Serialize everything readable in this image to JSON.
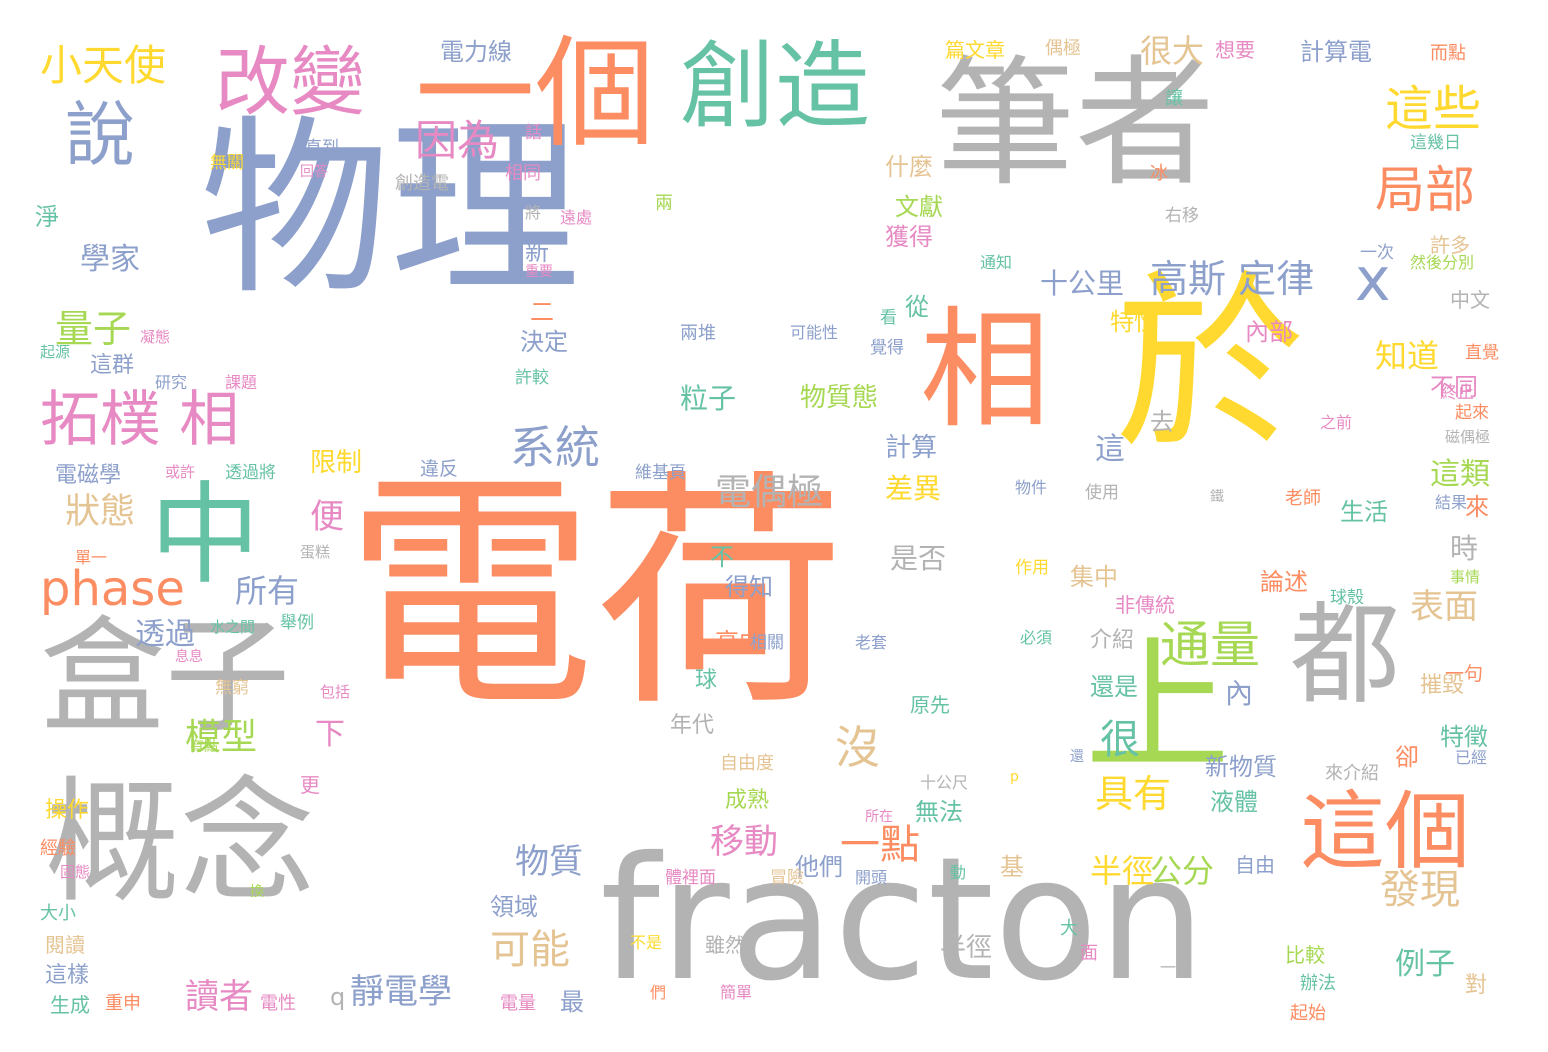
{
  "words": [
    {
      "text": "電荷",
      "color": "#FC8D62"
    },
    {
      "text": "物理",
      "color": "#8DA0CB"
    },
    {
      "text": "fracton",
      "color": "#B3B3B3"
    },
    {
      "text": "筆者",
      "color": "#B3B3B3"
    },
    {
      "text": "於",
      "color": "#FFD92F"
    },
    {
      "text": "概念",
      "color": "#B3B3B3"
    },
    {
      "text": "一個",
      "color": "#FC8D62"
    },
    {
      "text": "盒子",
      "color": "#B3B3B3"
    },
    {
      "text": "創造",
      "color": "#66C2A5"
    },
    {
      "text": "中",
      "color": "#66C2A5"
    },
    {
      "text": "相",
      "color": "#FC8D62"
    },
    {
      "text": "上",
      "color": "#A6D854"
    },
    {
      "text": "都",
      "color": "#B3B3B3"
    },
    {
      "text": "這個",
      "color": "#FC8D62"
    },
    {
      "text": "改變",
      "color": "#E78AC3"
    },
    {
      "text": "說",
      "color": "#8DA0CB"
    },
    {
      "text": "拓樸 相",
      "color": "#E78AC3"
    },
    {
      "text": "phase",
      "color": "#FC8D62"
    },
    {
      "text": "小天使",
      "color": "#FFD92F"
    },
    {
      "text": "因為",
      "color": "#E78AC3"
    },
    {
      "text": "x",
      "color": "#8DA0CB"
    },
    {
      "text": "這些",
      "color": "#FFD92F"
    },
    {
      "text": "局部",
      "color": "#FC8D62"
    },
    {
      "text": "高斯 定律",
      "color": "#8DA0CB"
    },
    {
      "text": "通量",
      "color": "#A6D854"
    },
    {
      "text": "系統",
      "color": "#8DA0CB"
    },
    {
      "text": "量子",
      "color": "#A6D854"
    },
    {
      "text": "狀態",
      "color": "#E5C494"
    },
    {
      "text": "學家",
      "color": "#8DA0CB"
    },
    {
      "text": "很大",
      "color": "#E5C494"
    },
    {
      "text": "很",
      "color": "#66C2A5"
    },
    {
      "text": "電偶極",
      "color": "#B3B3B3"
    },
    {
      "text": "模型",
      "color": "#A6D854"
    },
    {
      "text": "可能",
      "color": "#E5C494"
    },
    {
      "text": "沒",
      "color": "#E5C494"
    },
    {
      "text": "具有",
      "color": "#FFD92F"
    },
    {
      "text": "發現",
      "color": "#E5C494"
    },
    {
      "text": "一點",
      "color": "#FC8D62"
    },
    {
      "text": "移動",
      "color": "#E78AC3"
    },
    {
      "text": "物質",
      "color": "#8DA0CB"
    },
    {
      "text": "所有",
      "color": "#8DA0CB"
    },
    {
      "text": "讀者",
      "color": "#E78AC3"
    },
    {
      "text": "靜電學",
      "color": "#8DA0CB"
    },
    {
      "text": "半徑",
      "color": "#FFD92F"
    },
    {
      "text": "公分",
      "color": "#A6D854"
    },
    {
      "text": "知道",
      "color": "#FFD92F"
    },
    {
      "text": "這類",
      "color": "#A6D854"
    },
    {
      "text": "例子",
      "color": "#66C2A5"
    },
    {
      "text": "表面",
      "color": "#E5C494"
    },
    {
      "text": "十公里",
      "color": "#8DA0CB"
    },
    {
      "text": "粒子",
      "color": "#66C2A5"
    },
    {
      "text": "物質態",
      "color": "#A6D854"
    },
    {
      "text": "差異",
      "color": "#FFD92F"
    },
    {
      "text": "計算",
      "color": "#8DA0CB"
    },
    {
      "text": "從",
      "color": "#66C2A5"
    },
    {
      "text": "獲得",
      "color": "#E78AC3"
    },
    {
      "text": "文獻",
      "color": "#A6D854"
    },
    {
      "text": "什麼",
      "color": "#E5C494"
    },
    {
      "text": "電力線",
      "color": "#8DA0CB"
    },
    {
      "text": "計算電",
      "color": "#8DA0CB"
    },
    {
      "text": "篇文章",
      "color": "#FFD92F"
    },
    {
      "text": "偶極",
      "color": "#E5C494"
    },
    {
      "text": "想要",
      "color": "#E78AC3"
    },
    {
      "text": "而點",
      "color": "#FC8D62"
    },
    {
      "text": "讓",
      "color": "#66C2A5"
    },
    {
      "text": "這幾日",
      "color": "#66C2A5"
    },
    {
      "text": "冰",
      "color": "#FC8D62"
    },
    {
      "text": "右移",
      "color": "#B3B3B3"
    },
    {
      "text": "一次",
      "color": "#8DA0CB"
    },
    {
      "text": "許多",
      "color": "#E5C494"
    },
    {
      "text": "然後分別",
      "color": "#A6D854"
    },
    {
      "text": "中文",
      "color": "#B3B3B3"
    },
    {
      "text": "直覺",
      "color": "#FC8D62"
    },
    {
      "text": "終止",
      "color": "#E78AC3"
    },
    {
      "text": "起來",
      "color": "#FC8D62"
    },
    {
      "text": "磁偶極",
      "color": "#B3B3B3"
    },
    {
      "text": "之前",
      "color": "#E78AC3"
    },
    {
      "text": "不同",
      "color": "#E78AC3"
    },
    {
      "text": "來",
      "color": "#FC8D62"
    },
    {
      "text": "時",
      "color": "#B3B3B3"
    },
    {
      "text": "生活",
      "color": "#66C2A5"
    },
    {
      "text": "結果",
      "color": "#8DA0CB"
    },
    {
      "text": "老師",
      "color": "#FC8D62"
    },
    {
      "text": "事情",
      "color": "#A6D854"
    },
    {
      "text": "球殼",
      "color": "#66C2A5"
    },
    {
      "text": "一句",
      "color": "#FC8D62"
    },
    {
      "text": "摧毀",
      "color": "#E5C494"
    },
    {
      "text": "特徵",
      "color": "#66C2A5"
    },
    {
      "text": "卻",
      "color": "#FC8D62"
    },
    {
      "text": "已經",
      "color": "#8DA0CB"
    },
    {
      "text": "來介紹",
      "color": "#B3B3B3"
    },
    {
      "text": "辦法",
      "color": "#66C2A5"
    },
    {
      "text": "起始",
      "color": "#FC8D62"
    },
    {
      "text": "對",
      "color": "#E5C494"
    },
    {
      "text": "比較",
      "color": "#A6D854"
    },
    {
      "text": "一樣",
      "color": "#B3B3B3"
    },
    {
      "text": "自由",
      "color": "#8DA0CB"
    },
    {
      "text": "液體",
      "color": "#66C2A5"
    },
    {
      "text": "新物質",
      "color": "#8DA0CB"
    },
    {
      "text": "論述",
      "color": "#FC8D62"
    },
    {
      "text": "內",
      "color": "#8DA0CB"
    },
    {
      "text": "集中",
      "color": "#E5C494"
    },
    {
      "text": "介紹",
      "color": "#B3B3B3"
    },
    {
      "text": "還是",
      "color": "#66C2A5"
    },
    {
      "text": "非傳統",
      "color": "#E78AC3"
    },
    {
      "text": "內部",
      "color": "#E78AC3"
    },
    {
      "text": "特性",
      "color": "#FFD92F"
    },
    {
      "text": "這",
      "color": "#8DA0CB"
    },
    {
      "text": "去",
      "color": "#B3B3B3"
    },
    {
      "text": "使用",
      "color": "#B3B3B3"
    },
    {
      "text": "作用",
      "color": "#FFD92F"
    },
    {
      "text": "必須",
      "color": "#66C2A5"
    },
    {
      "text": "是否",
      "color": "#B3B3B3"
    },
    {
      "text": "不",
      "color": "#66C2A5"
    },
    {
      "text": "得知",
      "color": "#8DA0CB"
    },
    {
      "text": "高中",
      "color": "#FC8D62"
    },
    {
      "text": "球",
      "color": "#66C2A5"
    },
    {
      "text": "年代",
      "color": "#B3B3B3"
    },
    {
      "text": "下",
      "color": "#E78AC3"
    },
    {
      "text": "更",
      "color": "#E78AC3"
    },
    {
      "text": "便",
      "color": "#E78AC3"
    },
    {
      "text": "限制",
      "color": "#FFD92F"
    },
    {
      "text": "透過",
      "color": "#8DA0CB"
    },
    {
      "text": "電磁學",
      "color": "#8DA0CB"
    },
    {
      "text": "這群",
      "color": "#8DA0CB"
    },
    {
      "text": "操作",
      "color": "#FFD92F"
    },
    {
      "text": "經驗",
      "color": "#FC8D62"
    },
    {
      "text": "大小",
      "color": "#66C2A5"
    },
    {
      "text": "閱讀",
      "color": "#E5C494"
    },
    {
      "text": "這樣",
      "color": "#8DA0CB"
    },
    {
      "text": "生成",
      "color": "#66C2A5"
    },
    {
      "text": "重申",
      "color": "#FC8D62"
    },
    {
      "text": "電性",
      "color": "#E78AC3"
    },
    {
      "text": "電量",
      "color": "#E78AC3"
    },
    {
      "text": "最",
      "color": "#8DA0CB"
    },
    {
      "text": "q",
      "color": "#B3B3B3"
    },
    {
      "text": "領域",
      "color": "#8DA0CB"
    },
    {
      "text": "雖然",
      "color": "#B3B3B3"
    },
    {
      "text": "半徑",
      "color": "#B3B3B3"
    },
    {
      "text": "成熟",
      "color": "#A6D854"
    },
    {
      "text": "無法",
      "color": "#66C2A5"
    },
    {
      "text": "他們",
      "color": "#8DA0CB"
    },
    {
      "text": "自由度",
      "color": "#E5C494"
    },
    {
      "text": "原先",
      "color": "#66C2A5"
    },
    {
      "text": "十公尺",
      "color": "#B3B3B3"
    },
    {
      "text": "冒險",
      "color": "#E5C494"
    },
    {
      "text": "基",
      "color": "#E5C494"
    },
    {
      "text": "動",
      "color": "#66C2A5"
    },
    {
      "text": "開頭",
      "color": "#8DA0CB"
    },
    {
      "text": "體裡面",
      "color": "#E78AC3"
    },
    {
      "text": "面",
      "color": "#E78AC3"
    },
    {
      "text": "大",
      "color": "#66C2A5"
    },
    {
      "text": "不是",
      "color": "#FFD92F"
    },
    {
      "text": "們",
      "color": "#FC8D62"
    },
    {
      "text": "簡單",
      "color": "#E78AC3"
    },
    {
      "text": "維基頁",
      "color": "#8DA0CB"
    },
    {
      "text": "違反",
      "color": "#8DA0CB"
    },
    {
      "text": "透過將",
      "color": "#66C2A5"
    },
    {
      "text": "或許",
      "color": "#E78AC3"
    },
    {
      "text": "研究",
      "color": "#8DA0CB"
    },
    {
      "text": "課題",
      "color": "#E78AC3"
    },
    {
      "text": "許較",
      "color": "#66C2A5"
    },
    {
      "text": "決定",
      "color": "#8DA0CB"
    },
    {
      "text": "二",
      "color": "#FC8D62"
    },
    {
      "text": "新",
      "color": "#8DA0CB"
    },
    {
      "text": "重要",
      "color": "#E78AC3"
    },
    {
      "text": "遠處",
      "color": "#E78AC3"
    },
    {
      "text": "將",
      "color": "#B3B3B3"
    },
    {
      "text": "兩",
      "color": "#A6D854"
    },
    {
      "text": "相同",
      "color": "#E78AC3"
    },
    {
      "text": "創造電",
      "color": "#B3B3B3"
    },
    {
      "text": "直到",
      "color": "#8DA0CB"
    },
    {
      "text": "回答",
      "color": "#E78AC3"
    },
    {
      "text": "無關",
      "color": "#FFD92F"
    },
    {
      "text": "話",
      "color": "#E78AC3"
    },
    {
      "text": "淨",
      "color": "#66C2A5"
    },
    {
      "text": "凝態",
      "color": "#E78AC3"
    },
    {
      "text": "起源",
      "color": "#66C2A5"
    },
    {
      "text": "兩堆",
      "color": "#8DA0CB"
    },
    {
      "text": "可能性",
      "color": "#8DA0CB"
    },
    {
      "text": "看",
      "color": "#66C2A5"
    },
    {
      "text": "覺得",
      "color": "#8DA0CB"
    },
    {
      "text": "通知",
      "color": "#66C2A5"
    },
    {
      "text": "物件",
      "color": "#8DA0CB"
    },
    {
      "text": "鐵",
      "color": "#B3B3B3"
    },
    {
      "text": "所在",
      "color": "#E78AC3"
    },
    {
      "text": "p",
      "color": "#FFD92F"
    },
    {
      "text": "還",
      "color": "#8DA0CB"
    },
    {
      "text": "單一",
      "color": "#FC8D62"
    },
    {
      "text": "蛋糕",
      "color": "#B3B3B3"
    },
    {
      "text": "水之間",
      "color": "#66C2A5"
    },
    {
      "text": "舉例",
      "color": "#66C2A5"
    },
    {
      "text": "息息",
      "color": "#E78AC3"
    },
    {
      "text": "無窮",
      "color": "#E5C494"
    },
    {
      "text": "包括",
      "color": "#E78AC3"
    },
    {
      "text": "有點",
      "color": "#A6D854"
    },
    {
      "text": "固態",
      "color": "#E78AC3"
    },
    {
      "text": "換",
      "color": "#A6D854"
    },
    {
      "text": "相關",
      "color": "#8DA0CB"
    },
    {
      "text": "老套",
      "color": "#8DA0CB"
    }
  ]
}
